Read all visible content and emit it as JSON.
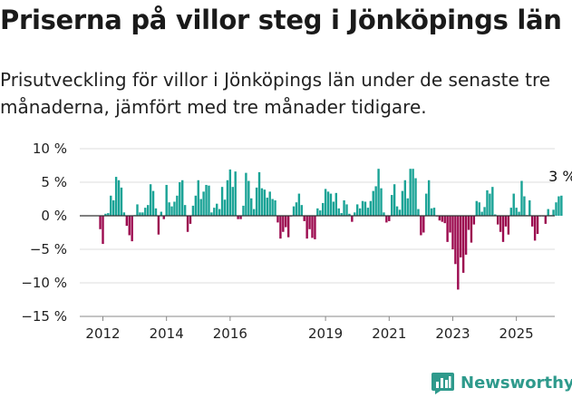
{
  "title": "Priserna på villor steg i Jönköpings län",
  "subtitle": "Prisutveckling för villor i Jönköpings län under de senaste tre månaderna, jämfört med tre månader tidigare.",
  "brand": {
    "name": "Newsworthy",
    "icon": "chart-logo-icon"
  },
  "chart_data": {
    "type": "bar",
    "title": "",
    "xlabel": "",
    "ylabel": "",
    "y_unit": "%",
    "ylim": [
      -15,
      10
    ],
    "y_ticks": [
      10,
      5,
      0,
      -5,
      -10,
      -15
    ],
    "y_tick_labels": [
      "10 %",
      "5 %",
      "0 %",
      "−5 %",
      "−10 %",
      "−15 %"
    ],
    "grid": true,
    "colors": {
      "positive": "#1aa396",
      "negative": "#9c0a4f"
    },
    "x_ticks": [
      "2012",
      "2014",
      "2016",
      "2019",
      "2021",
      "2023",
      "2025"
    ],
    "x_start": "2012-01",
    "x_end": "2025-07",
    "monthly_start": "2011-12",
    "values": [
      -2.0,
      -4.2,
      0.3,
      0.4,
      3.0,
      2.3,
      5.8,
      5.3,
      4.2,
      0.5,
      -1.5,
      -2.9,
      -3.8,
      0.1,
      1.7,
      0.5,
      0.5,
      1.2,
      1.6,
      4.7,
      3.7,
      1.1,
      -2.8,
      0.6,
      -0.5,
      4.6,
      2.0,
      1.4,
      2.1,
      3.0,
      5.0,
      5.3,
      1.6,
      -2.4,
      -1.2,
      1.5,
      3.0,
      5.3,
      2.5,
      3.6,
      4.6,
      4.5,
      0.5,
      1.2,
      1.8,
      1.0,
      4.3,
      2.4,
      5.3,
      6.9,
      4.3,
      6.6,
      -0.5,
      -0.5,
      1.5,
      6.4,
      5.2,
      2.6,
      1.0,
      4.2,
      6.5,
      4.1,
      3.9,
      2.7,
      3.6,
      2.5,
      2.3,
      -1.0,
      -3.4,
      -2.4,
      -1.7,
      -3.2,
      -0.1,
      1.4,
      2.0,
      3.3,
      1.6,
      -0.8,
      -3.4,
      -2.0,
      -3.3,
      -3.5,
      1.1,
      0.8,
      1.9,
      4.0,
      3.6,
      3.3,
      2.1,
      3.4,
      1.1,
      0.4,
      2.3,
      1.7,
      0.3,
      -0.9,
      0.5,
      1.7,
      1.1,
      2.2,
      2.1,
      1.2,
      2.2,
      3.7,
      4.4,
      7.0,
      4.1,
      0.5,
      -1.0,
      -0.8,
      3.1,
      4.7,
      1.4,
      0.9,
      3.7,
      5.3,
      2.6,
      7.0,
      7.0,
      5.6,
      1.0,
      -2.9,
      -2.5,
      3.3,
      5.3,
      1.1,
      1.2,
      -0.1,
      -0.7,
      -0.9,
      -1.1,
      -3.9,
      -2.5,
      -5.0,
      -7.2,
      -11.0,
      -6.2,
      -8.5,
      -5.8,
      -2.1,
      -4.0,
      -1.3,
      2.2,
      2.0,
      0.6,
      1.3,
      3.8,
      3.3,
      4.3,
      0.2,
      -1.3,
      -2.4,
      -3.9,
      -1.6,
      -2.8,
      1.2,
      3.3,
      1.2,
      0.6,
      5.2,
      2.9,
      0.1,
      2.3,
      -1.6,
      -3.7,
      -2.7,
      -0.1,
      -0.1,
      -1.2,
      1.0,
      0.1,
      0.9,
      2.0,
      2.9,
      3.0
    ],
    "annotations": [
      {
        "label": "3 %",
        "at": "last"
      }
    ]
  }
}
